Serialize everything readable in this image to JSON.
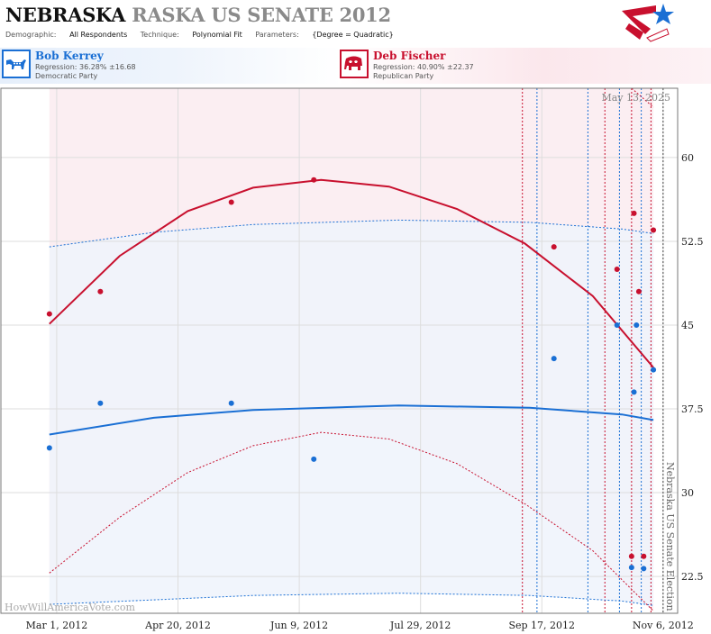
{
  "header": {
    "title_state": "NEBRASKA",
    "title_rest": "RASKA US SENATE 2012",
    "demographic_label": "Demographic:",
    "demographic_value": "All Respondents",
    "technique_label": "Technique:",
    "technique_value": "Polynomial Fit",
    "parameters_label": "Parameters:",
    "parameters_value": "{Degree = Quadratic}"
  },
  "candidates": {
    "dem": {
      "name": "Bob Kerrey",
      "regression": "Regression: 36.28% ±16.68",
      "party": "Democratic Party",
      "icon": "donkey-icon",
      "color": "#1a6fd4"
    },
    "rep": {
      "name": "Deb Fischer",
      "regression": "Regression: 40.90% ±22.37",
      "party": "Republican Party",
      "icon": "elephant-icon",
      "color": "#c8102e"
    }
  },
  "chart_data": {
    "type": "scatter",
    "date_label": "May 13, 2025",
    "watermark": "HowWillAmericaVote.com",
    "election_label": "Nebraska US Senate Election",
    "x_ticks": [
      "Mar 1, 2012",
      "Apr 20, 2012",
      "Jun 9, 2012",
      "Jul 29, 2012",
      "Sep 17, 2012",
      "Nov 6, 2012"
    ],
    "xlim": [
      "2012-02-07",
      "2012-11-12"
    ],
    "y_ticks": [
      "60",
      "52.5",
      "45",
      "37.5",
      "30",
      "22.5"
    ],
    "ylim": [
      19.2,
      66.2
    ],
    "grid": true,
    "series": [
      {
        "name": "Bob Kerrey",
        "color": "#1a6fd4",
        "points": [
          {
            "x": "2012-02-27",
            "y": 34
          },
          {
            "x": "2012-03-19",
            "y": 38
          },
          {
            "x": "2012-05-12",
            "y": 38
          },
          {
            "x": "2012-06-15",
            "y": 33
          },
          {
            "x": "2012-09-22",
            "y": 42
          },
          {
            "x": "2012-10-18",
            "y": 45
          },
          {
            "x": "2012-10-24",
            "y": 23.3
          },
          {
            "x": "2012-10-25",
            "y": 39
          },
          {
            "x": "2012-10-26",
            "y": 45
          },
          {
            "x": "2012-10-29",
            "y": 23.2
          },
          {
            "x": "2012-11-02",
            "y": 41
          }
        ],
        "fit": [
          {
            "x": "2012-02-27",
            "y": 35.2
          },
          {
            "x": "2012-04-10",
            "y": 36.7
          },
          {
            "x": "2012-05-21",
            "y": 37.4
          },
          {
            "x": "2012-07-20",
            "y": 37.8
          },
          {
            "x": "2012-09-12",
            "y": 37.6
          },
          {
            "x": "2012-10-20",
            "y": 37.0
          },
          {
            "x": "2012-11-02",
            "y": 36.5
          }
        ],
        "band_upper": [
          {
            "x": "2012-02-27",
            "y": 52.0
          },
          {
            "x": "2012-04-10",
            "y": 53.3
          },
          {
            "x": "2012-05-21",
            "y": 54.0
          },
          {
            "x": "2012-07-20",
            "y": 54.4
          },
          {
            "x": "2012-09-12",
            "y": 54.2
          },
          {
            "x": "2012-10-20",
            "y": 53.6
          },
          {
            "x": "2012-11-02",
            "y": 53.2
          }
        ],
        "band_lower": [
          {
            "x": "2012-02-27",
            "y": 20.0
          },
          {
            "x": "2012-04-10",
            "y": 20.4
          },
          {
            "x": "2012-05-21",
            "y": 20.8
          },
          {
            "x": "2012-07-20",
            "y": 21.0
          },
          {
            "x": "2012-09-12",
            "y": 20.8
          },
          {
            "x": "2012-10-20",
            "y": 20.3
          },
          {
            "x": "2012-11-02",
            "y": 19.9
          }
        ]
      },
      {
        "name": "Deb Fischer",
        "color": "#c8102e",
        "points": [
          {
            "x": "2012-02-27",
            "y": 46
          },
          {
            "x": "2012-03-19",
            "y": 48
          },
          {
            "x": "2012-05-12",
            "y": 56
          },
          {
            "x": "2012-06-15",
            "y": 58
          },
          {
            "x": "2012-09-22",
            "y": 52
          },
          {
            "x": "2012-10-18",
            "y": 50
          },
          {
            "x": "2012-10-24",
            "y": 24.3
          },
          {
            "x": "2012-10-25",
            "y": 55
          },
          {
            "x": "2012-10-27",
            "y": 48
          },
          {
            "x": "2012-10-29",
            "y": 24.3
          },
          {
            "x": "2012-11-02",
            "y": 53.5
          }
        ],
        "fit": [
          {
            "x": "2012-02-27",
            "y": 45.1
          },
          {
            "x": "2012-03-27",
            "y": 51.2
          },
          {
            "x": "2012-04-24",
            "y": 55.2
          },
          {
            "x": "2012-05-21",
            "y": 57.3
          },
          {
            "x": "2012-06-18",
            "y": 58.0
          },
          {
            "x": "2012-07-16",
            "y": 57.4
          },
          {
            "x": "2012-08-13",
            "y": 55.4
          },
          {
            "x": "2012-09-10",
            "y": 52.3
          },
          {
            "x": "2012-10-08",
            "y": 47.6
          },
          {
            "x": "2012-11-02",
            "y": 41.2
          }
        ],
        "band_upper": [
          {
            "x": "2012-10-24",
            "y": 66.2
          },
          {
            "x": "2012-11-02",
            "y": 64.5
          }
        ],
        "band_lower": [
          {
            "x": "2012-02-27",
            "y": 22.8
          },
          {
            "x": "2012-03-27",
            "y": 27.8
          },
          {
            "x": "2012-04-24",
            "y": 31.8
          },
          {
            "x": "2012-05-21",
            "y": 34.2
          },
          {
            "x": "2012-06-18",
            "y": 35.4
          },
          {
            "x": "2012-07-16",
            "y": 34.8
          },
          {
            "x": "2012-08-13",
            "y": 32.6
          },
          {
            "x": "2012-09-10",
            "y": 29.0
          },
          {
            "x": "2012-10-08",
            "y": 24.8
          },
          {
            "x": "2012-11-02",
            "y": 19.4
          }
        ]
      }
    ],
    "vlines": [
      {
        "x": "2012-09-09",
        "color": "#c8102e"
      },
      {
        "x": "2012-09-15",
        "color": "#1a6fd4"
      },
      {
        "x": "2012-10-06",
        "color": "#1a6fd4"
      },
      {
        "x": "2012-10-13",
        "color": "#c8102e"
      },
      {
        "x": "2012-10-19",
        "color": "#1a6fd4"
      },
      {
        "x": "2012-10-24",
        "color": "#c8102e"
      },
      {
        "x": "2012-10-28",
        "color": "#1a6fd4"
      },
      {
        "x": "2012-11-01",
        "color": "#c8102e"
      },
      {
        "x": "2012-11-06",
        "color": "#444444"
      }
    ],
    "colors": {
      "dem": "#1a6fd4",
      "rep": "#c8102e",
      "dem_band": "#eef3fb",
      "rep_band": "#fbeef2",
      "overlap_band": "#efe9f3",
      "grid": "#dddddd"
    }
  }
}
